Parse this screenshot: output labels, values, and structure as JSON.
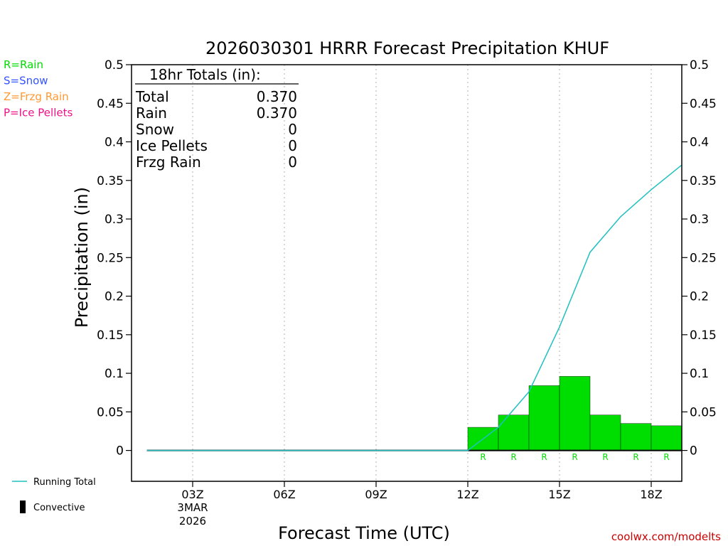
{
  "chart_data": {
    "type": "bar",
    "title": "2026030301 HRRR Forecast Precipitation KHUF",
    "xlabel": "Forecast Time (UTC)",
    "ylabel": "Precipitation (in)",
    "ylim": [
      -0.04,
      0.5
    ],
    "xlim": [
      1.0,
      19.0
    ],
    "grid": "vertical dotted",
    "y_ticks": [
      {
        "value": 0,
        "label": "0"
      },
      {
        "value": 0.05,
        "label": "0.05"
      },
      {
        "value": 0.1,
        "label": "0.1"
      },
      {
        "value": 0.15,
        "label": "0.15"
      },
      {
        "value": 0.2,
        "label": "0.2"
      },
      {
        "value": 0.25,
        "label": "0.25"
      },
      {
        "value": 0.3,
        "label": "0.3"
      },
      {
        "value": 0.35,
        "label": "0.35"
      },
      {
        "value": 0.4,
        "label": "0.4"
      },
      {
        "value": 0.45,
        "label": "0.45"
      },
      {
        "value": 0.5,
        "label": "0.5"
      }
    ],
    "x_ticks": [
      {
        "hour": 3,
        "label": "03Z",
        "date_line1": "3MAR",
        "date_line2": "2026"
      },
      {
        "hour": 6,
        "label": "06Z"
      },
      {
        "hour": 9,
        "label": "09Z"
      },
      {
        "hour": 12,
        "label": "12Z"
      },
      {
        "hour": 15,
        "label": "15Z"
      },
      {
        "hour": 18,
        "label": "18Z"
      }
    ],
    "series": [
      {
        "name": "Rain",
        "color": "#00dd00",
        "hours": [
          13,
          14,
          15,
          16,
          17,
          18,
          19
        ],
        "values": [
          0.03,
          0.046,
          0.084,
          0.096,
          0.046,
          0.035,
          0.032
        ],
        "type_labels": [
          "R",
          "R",
          "R",
          "R",
          "R",
          "R",
          "R"
        ]
      },
      {
        "name": "Running Total",
        "color": "#20c0c0",
        "hours": [
          1.5,
          12,
          13,
          14,
          15,
          16,
          17,
          18,
          19
        ],
        "values": [
          0,
          0,
          0.03,
          0.076,
          0.16,
          0.257,
          0.303,
          0.338,
          0.37
        ]
      }
    ],
    "totals_box": {
      "heading": "18hr Totals (in):",
      "rows": [
        {
          "label": "Total",
          "value": "0.370"
        },
        {
          "label": "Rain",
          "value": "0.370"
        },
        {
          "label": "Snow",
          "value": "0"
        },
        {
          "label": "Ice Pellets",
          "value": "0"
        },
        {
          "label": "Frzg Rain",
          "value": "0"
        }
      ]
    },
    "type_legend": [
      {
        "text": "R=Rain",
        "color": "#00dd00"
      },
      {
        "text": "S=Snow",
        "color": "#3355ff"
      },
      {
        "text": "Z=Frzg Rain",
        "color": "#ff9933"
      },
      {
        "text": "P=Ice Pellets",
        "color": "#ee1188"
      }
    ],
    "line_legend": [
      {
        "text": "Running Total",
        "color": "#20c0c0",
        "symbol": "line"
      },
      {
        "text": "Convective",
        "color": "#000000",
        "symbol": "bar"
      }
    ],
    "credit": "coolwx.com/modelts",
    "credit_color": "#cc0000"
  }
}
